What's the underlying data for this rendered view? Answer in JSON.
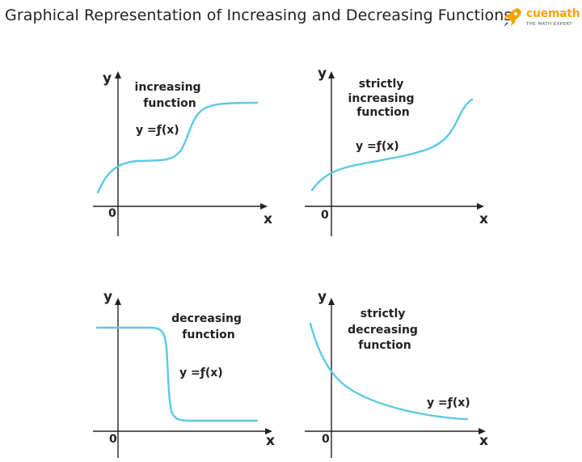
{
  "header": {
    "title": "Graphical Representation of Increasing and Decreasing Functions",
    "logo": {
      "name": "cuemath",
      "tagline": "THE MATH EXPERT",
      "icon": "rocket-icon",
      "accent_color": "#f5a300"
    }
  },
  "curve_color": "#5bc8e6",
  "axis_color": "#222222",
  "panels": [
    {
      "description_lines": [
        "increasing",
        "function"
      ],
      "equation": "y =ƒ(x)",
      "y_label": "y",
      "x_label": "x",
      "origin_label": "0"
    },
    {
      "description_lines": [
        "strictly",
        "increasing",
        "function"
      ],
      "equation": "y =ƒ(x)",
      "y_label": "y",
      "x_label": "x",
      "origin_label": "0"
    },
    {
      "description_lines": [
        "decreasing",
        "function"
      ],
      "equation": "y =ƒ(x)",
      "y_label": "y",
      "x_label": "x",
      "origin_label": "0"
    },
    {
      "description_lines": [
        "strictly",
        "decreasing",
        "function"
      ],
      "equation": "y =ƒ(x)",
      "y_label": "y",
      "x_label": "x",
      "origin_label": "0"
    }
  ]
}
